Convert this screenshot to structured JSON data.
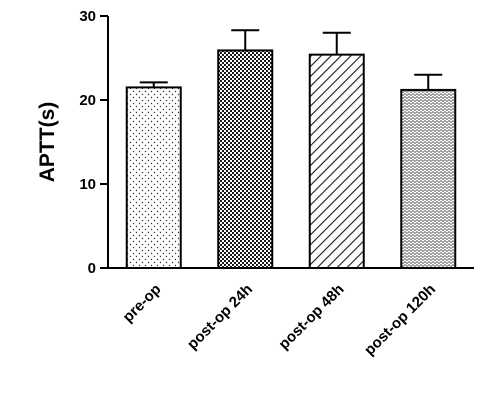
{
  "chart_data": {
    "type": "bar",
    "title": "",
    "xlabel": "",
    "ylabel": "APTT(s)",
    "ylim": [
      0,
      30
    ],
    "yticks": [
      0,
      10,
      20,
      30
    ],
    "grid": false,
    "categories": [
      "pre-op",
      "post-op 24h",
      "post-op 48h",
      "post-op 120h"
    ],
    "values": [
      21.5,
      25.9,
      25.4,
      21.2
    ],
    "errors": [
      0.6,
      2.4,
      2.6,
      1.8
    ],
    "patterns": [
      "dots",
      "checker",
      "diagonal-hatch",
      "wave-dots"
    ]
  }
}
